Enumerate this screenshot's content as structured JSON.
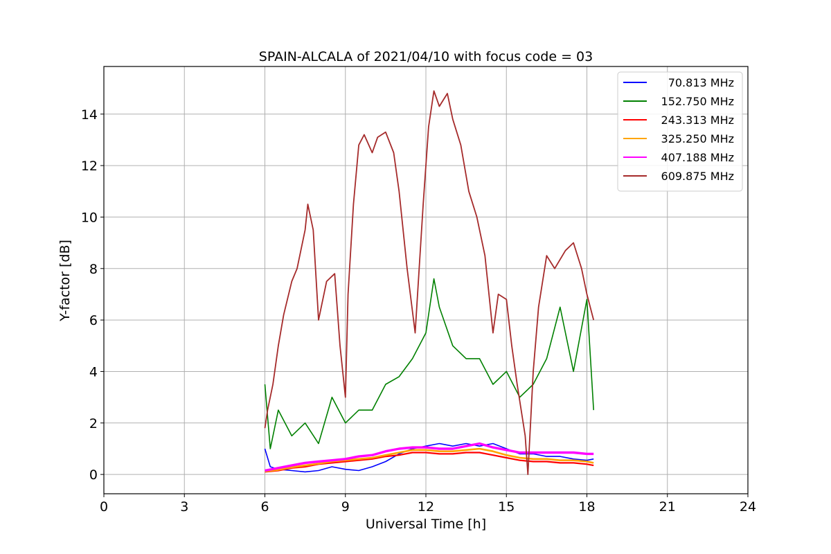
{
  "chart_data": {
    "type": "line",
    "title": "SPAIN-ALCALA of 2021/04/10 with focus code = 03",
    "xlabel": "Universal Time [h]",
    "ylabel": "Y-factor [dB]",
    "xlim": [
      0,
      24
    ],
    "ylim": [
      -0.75,
      15.85
    ],
    "xticks": [
      "0",
      "3",
      "6",
      "9",
      "12",
      "15",
      "18",
      "21",
      "24"
    ],
    "yticks": [
      "0",
      "2",
      "4",
      "6",
      "8",
      "10",
      "12",
      "14"
    ],
    "grid": true,
    "legend_position": "top-right",
    "series": [
      {
        "name": "70.813 MHz",
        "color": "#0000ff",
        "points": [
          [
            6.0,
            1.0
          ],
          [
            6.2,
            0.3
          ],
          [
            6.5,
            0.2
          ],
          [
            7.0,
            0.15
          ],
          [
            7.5,
            0.1
          ],
          [
            8.0,
            0.15
          ],
          [
            8.5,
            0.3
          ],
          [
            9.0,
            0.2
          ],
          [
            9.5,
            0.15
          ],
          [
            10.0,
            0.3
          ],
          [
            10.5,
            0.5
          ],
          [
            11.0,
            0.8
          ],
          [
            11.5,
            1.0
          ],
          [
            12.0,
            1.1
          ],
          [
            12.5,
            1.2
          ],
          [
            13.0,
            1.1
          ],
          [
            13.5,
            1.2
          ],
          [
            14.0,
            1.1
          ],
          [
            14.5,
            1.2
          ],
          [
            15.0,
            1.0
          ],
          [
            15.5,
            0.8
          ],
          [
            16.0,
            0.8
          ],
          [
            16.5,
            0.7
          ],
          [
            17.0,
            0.7
          ],
          [
            17.5,
            0.6
          ],
          [
            18.0,
            0.55
          ],
          [
            18.25,
            0.6
          ]
        ]
      },
      {
        "name": "152.750 MHz",
        "color": "#008000",
        "points": [
          [
            6.0,
            3.5
          ],
          [
            6.2,
            1.0
          ],
          [
            6.5,
            2.5
          ],
          [
            7.0,
            1.5
          ],
          [
            7.5,
            2.0
          ],
          [
            8.0,
            1.2
          ],
          [
            8.5,
            3.0
          ],
          [
            9.0,
            2.0
          ],
          [
            9.5,
            2.5
          ],
          [
            10.0,
            2.5
          ],
          [
            10.5,
            3.5
          ],
          [
            11.0,
            3.8
          ],
          [
            11.5,
            4.5
          ],
          [
            12.0,
            5.5
          ],
          [
            12.3,
            7.6
          ],
          [
            12.5,
            6.5
          ],
          [
            13.0,
            5.0
          ],
          [
            13.5,
            4.5
          ],
          [
            14.0,
            4.5
          ],
          [
            14.5,
            3.5
          ],
          [
            15.0,
            4.0
          ],
          [
            15.5,
            3.0
          ],
          [
            16.0,
            3.5
          ],
          [
            16.5,
            4.5
          ],
          [
            17.0,
            6.5
          ],
          [
            17.5,
            4.0
          ],
          [
            18.0,
            6.8
          ],
          [
            18.25,
            2.5
          ]
        ]
      },
      {
        "name": "243.313 MHz",
        "color": "#ff0000",
        "points": [
          [
            6.0,
            0.1
          ],
          [
            6.5,
            0.15
          ],
          [
            7.0,
            0.25
          ],
          [
            7.5,
            0.3
          ],
          [
            8.0,
            0.4
          ],
          [
            8.5,
            0.45
          ],
          [
            9.0,
            0.5
          ],
          [
            9.5,
            0.55
          ],
          [
            10.0,
            0.6
          ],
          [
            10.5,
            0.7
          ],
          [
            11.0,
            0.75
          ],
          [
            11.5,
            0.85
          ],
          [
            12.0,
            0.85
          ],
          [
            12.5,
            0.8
          ],
          [
            13.0,
            0.8
          ],
          [
            13.5,
            0.85
          ],
          [
            14.0,
            0.85
          ],
          [
            14.5,
            0.75
          ],
          [
            15.0,
            0.65
          ],
          [
            15.5,
            0.55
          ],
          [
            16.0,
            0.5
          ],
          [
            16.5,
            0.5
          ],
          [
            17.0,
            0.45
          ],
          [
            17.5,
            0.45
          ],
          [
            18.0,
            0.4
          ],
          [
            18.25,
            0.35
          ]
        ]
      },
      {
        "name": "325.250 MHz",
        "color": "#ffa500",
        "points": [
          [
            6.0,
            0.12
          ],
          [
            6.5,
            0.18
          ],
          [
            7.0,
            0.28
          ],
          [
            7.5,
            0.35
          ],
          [
            8.0,
            0.42
          ],
          [
            8.5,
            0.5
          ],
          [
            9.0,
            0.55
          ],
          [
            9.5,
            0.6
          ],
          [
            10.0,
            0.65
          ],
          [
            10.5,
            0.75
          ],
          [
            11.0,
            0.85
          ],
          [
            11.5,
            0.95
          ],
          [
            12.0,
            0.95
          ],
          [
            12.5,
            0.9
          ],
          [
            13.0,
            0.9
          ],
          [
            13.5,
            0.95
          ],
          [
            14.0,
            1.0
          ],
          [
            14.5,
            0.9
          ],
          [
            15.0,
            0.75
          ],
          [
            15.5,
            0.65
          ],
          [
            16.0,
            0.6
          ],
          [
            16.5,
            0.6
          ],
          [
            17.0,
            0.55
          ],
          [
            17.5,
            0.55
          ],
          [
            18.0,
            0.5
          ],
          [
            18.25,
            0.45
          ]
        ]
      },
      {
        "name": "407.188 MHz",
        "color": "#ff00ff",
        "points": [
          [
            6.0,
            0.15
          ],
          [
            6.5,
            0.25
          ],
          [
            7.0,
            0.35
          ],
          [
            7.5,
            0.45
          ],
          [
            8.0,
            0.5
          ],
          [
            8.5,
            0.55
          ],
          [
            9.0,
            0.6
          ],
          [
            9.5,
            0.7
          ],
          [
            10.0,
            0.75
          ],
          [
            10.5,
            0.9
          ],
          [
            11.0,
            1.0
          ],
          [
            11.5,
            1.05
          ],
          [
            12.0,
            1.05
          ],
          [
            12.5,
            1.0
          ],
          [
            13.0,
            1.0
          ],
          [
            13.5,
            1.1
          ],
          [
            14.0,
            1.2
          ],
          [
            14.5,
            1.05
          ],
          [
            15.0,
            0.95
          ],
          [
            15.5,
            0.85
          ],
          [
            16.0,
            0.85
          ],
          [
            16.5,
            0.85
          ],
          [
            17.0,
            0.85
          ],
          [
            17.5,
            0.85
          ],
          [
            18.0,
            0.8
          ],
          [
            18.25,
            0.8
          ]
        ]
      },
      {
        "name": "609.875 MHz",
        "color": "#a52a2a",
        "points": [
          [
            6.0,
            1.8
          ],
          [
            6.1,
            2.5
          ],
          [
            6.3,
            3.5
          ],
          [
            6.5,
            5.0
          ],
          [
            6.7,
            6.2
          ],
          [
            7.0,
            7.5
          ],
          [
            7.2,
            8.0
          ],
          [
            7.5,
            9.5
          ],
          [
            7.6,
            10.5
          ],
          [
            7.8,
            9.5
          ],
          [
            8.0,
            6.0
          ],
          [
            8.3,
            7.5
          ],
          [
            8.6,
            7.8
          ],
          [
            8.8,
            5.0
          ],
          [
            9.0,
            3.0
          ],
          [
            9.1,
            7.0
          ],
          [
            9.3,
            10.5
          ],
          [
            9.5,
            12.8
          ],
          [
            9.7,
            13.2
          ],
          [
            10.0,
            12.5
          ],
          [
            10.2,
            13.1
          ],
          [
            10.5,
            13.3
          ],
          [
            10.8,
            12.5
          ],
          [
            11.0,
            11.0
          ],
          [
            11.3,
            8.0
          ],
          [
            11.6,
            5.5
          ],
          [
            11.9,
            10.5
          ],
          [
            12.1,
            13.5
          ],
          [
            12.3,
            14.9
          ],
          [
            12.5,
            14.3
          ],
          [
            12.8,
            14.8
          ],
          [
            13.0,
            13.8
          ],
          [
            13.3,
            12.8
          ],
          [
            13.6,
            11.0
          ],
          [
            13.9,
            10.0
          ],
          [
            14.2,
            8.5
          ],
          [
            14.5,
            5.5
          ],
          [
            14.7,
            7.0
          ],
          [
            15.0,
            6.8
          ],
          [
            15.2,
            5.0
          ],
          [
            15.4,
            3.5
          ],
          [
            15.7,
            1.5
          ],
          [
            15.8,
            0.0
          ],
          [
            16.0,
            4.0
          ],
          [
            16.2,
            6.5
          ],
          [
            16.5,
            8.5
          ],
          [
            16.8,
            8.0
          ],
          [
            17.2,
            8.7
          ],
          [
            17.5,
            9.0
          ],
          [
            17.8,
            8.0
          ],
          [
            18.0,
            7.0
          ],
          [
            18.25,
            6.0
          ]
        ]
      }
    ]
  }
}
